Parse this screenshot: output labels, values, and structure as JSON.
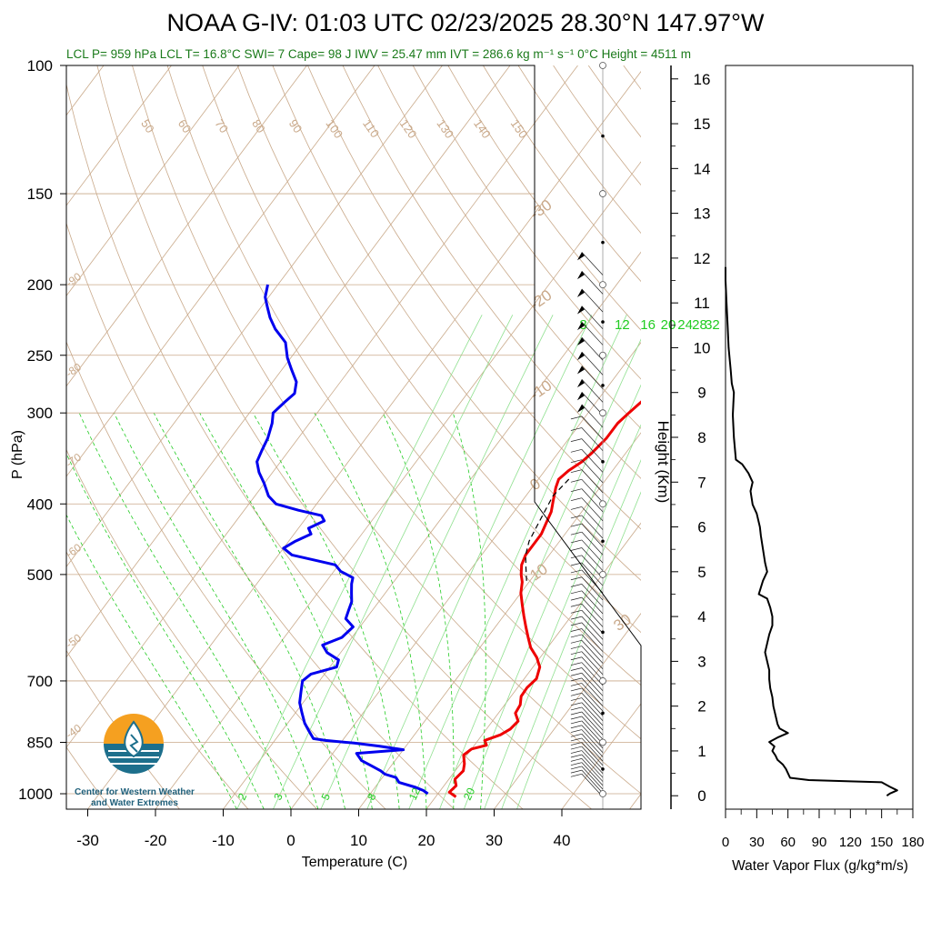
{
  "header": {
    "title": "NOAA G-IV: 01:03 UTC 02/23/2025  28.30°N 147.97°W",
    "subtitle": "LCL P= 959 hPa  LCL T= 16.8°C  SWI= 7  Cape= 98 J  IWV = 25.47 mm  IVT = 286.6 kg m⁻¹ s⁻¹  0°C Height = 4511 m"
  },
  "logo": {
    "line1": "Center for Western Weather",
    "line2": "and Water Extremes"
  },
  "colors": {
    "temperature": "#ee0000",
    "dewpoint": "#0000ee",
    "mixing_ratio": "#22cc22",
    "adiabat": "#c9a98a",
    "isotherm": "#c9a98a",
    "flux": "#000000"
  },
  "chart_data": [
    {
      "type": "line",
      "subtype": "skew-T log-P sounding",
      "xlabel": "Temperature (C)",
      "ylabel": "P (hPa)",
      "x_ticks": [
        "-30",
        "-20",
        "-10",
        "0",
        "10",
        "20",
        "30",
        "40"
      ],
      "y_ticks": [
        "100",
        "150",
        "200",
        "250",
        "300",
        "400",
        "500",
        "700",
        "850",
        "1000"
      ],
      "xlim": [
        -34,
        44
      ],
      "ylim": [
        1050,
        100
      ],
      "y_scale": "log",
      "isotherm_labels": [
        "-90",
        "-80",
        "-70",
        "-60",
        "-50",
        "-40",
        "-30",
        "-20",
        "-10",
        "0",
        "10",
        "20",
        "30"
      ],
      "dry_adiabat_labels": [
        "50",
        "60",
        "70",
        "80",
        "90",
        "100",
        "110",
        "120",
        "130",
        "140",
        "150",
        "160"
      ],
      "mixing_ratio_labels_top": [
        "8",
        "12",
        "16",
        "20",
        "24",
        "28",
        "32"
      ],
      "mixing_ratio_labels_bottom": [
        "2",
        "3",
        "5",
        "8",
        "12",
        "20"
      ],
      "series": [
        {
          "name": "Temperature",
          "points": [
            [
              23.0,
              1010
            ],
            [
              21.5,
              995
            ],
            [
              21.8,
              975
            ],
            [
              20.9,
              955
            ],
            [
              21.2,
              930
            ],
            [
              20.6,
              910
            ],
            [
              19.5,
              885
            ],
            [
              20.0,
              868
            ],
            [
              21.8,
              858
            ],
            [
              21.0,
              845
            ],
            [
              22.7,
              830
            ],
            [
              23.5,
              815
            ],
            [
              23.8,
              795
            ],
            [
              22.5,
              775
            ],
            [
              22.3,
              755
            ],
            [
              21.5,
              735
            ],
            [
              21.4,
              715
            ],
            [
              21.8,
              695
            ],
            [
              21.0,
              670
            ],
            [
              19.5,
              650
            ],
            [
              17.5,
              630
            ],
            [
              16.0,
              610
            ],
            [
              14.5,
              590
            ],
            [
              13.0,
              570
            ],
            [
              11.5,
              550
            ],
            [
              10.0,
              530
            ],
            [
              9.0,
              512
            ],
            [
              8.0,
              500
            ],
            [
              7.0,
              485
            ],
            [
              6.5,
              470
            ],
            [
              6.5,
              455
            ],
            [
              6.5,
              440
            ],
            [
              6.0,
              425
            ],
            [
              5.5,
              410
            ],
            [
              4.5,
              395
            ],
            [
              3.5,
              380
            ],
            [
              3.0,
              370
            ],
            [
              3.5,
              360
            ],
            [
              4.5,
              350
            ],
            [
              5.0,
              340
            ],
            [
              5.5,
              325
            ],
            [
              5.5,
              310
            ],
            [
              6.0,
              300
            ],
            [
              6.5,
              292
            ],
            [
              7.0,
              284
            ],
            [
              6.5,
              276
            ],
            [
              5.0,
              265
            ],
            [
              4.0,
              255
            ],
            [
              3.0,
              245
            ],
            [
              1.0,
              235
            ],
            [
              -1.0,
              225
            ],
            [
              -3.0,
              215
            ],
            [
              -4.0,
              205
            ],
            [
              -5.0,
              200
            ]
          ]
        },
        {
          "name": "Dewpoint",
          "points": [
            [
              18.5,
              1000
            ],
            [
              17.5,
              990
            ],
            [
              16.0,
              980
            ],
            [
              13.0,
              965
            ],
            [
              12.0,
              950
            ],
            [
              10.0,
              940
            ],
            [
              9.0,
              930
            ],
            [
              7.0,
              915
            ],
            [
              5.0,
              900
            ],
            [
              3.5,
              880
            ],
            [
              10.0,
              870
            ],
            [
              6.0,
              860
            ],
            [
              2.0,
              852
            ],
            [
              -2.5,
              845
            ],
            [
              -4.5,
              840
            ],
            [
              -6.0,
              820
            ],
            [
              -7.5,
              800
            ],
            [
              -9.0,
              775
            ],
            [
              -10.5,
              750
            ],
            [
              -11.5,
              725
            ],
            [
              -12.5,
              700
            ],
            [
              -12.0,
              685
            ],
            [
              -9.0,
              670
            ],
            [
              -9.5,
              655
            ],
            [
              -12.0,
              640
            ],
            [
              -13.5,
              625
            ],
            [
              -11.5,
              610
            ],
            [
              -11.0,
              590
            ],
            [
              -13.0,
              575
            ],
            [
              -13.5,
              560
            ],
            [
              -14.0,
              545
            ],
            [
              -15.0,
              530
            ],
            [
              -16.0,
              515
            ],
            [
              -16.5,
              505
            ],
            [
              -19.0,
              495
            ],
            [
              -20.5,
              485
            ],
            [
              -24.0,
              478
            ],
            [
              -28.0,
              470
            ],
            [
              -30.0,
              460
            ],
            [
              -29.0,
              450
            ],
            [
              -27.5,
              440
            ],
            [
              -28.5,
              432
            ],
            [
              -27.0,
              422
            ],
            [
              -28.0,
              415
            ],
            [
              -32.0,
              408
            ],
            [
              -36.0,
              400
            ],
            [
              -38.0,
              390
            ],
            [
              -40.0,
              375
            ],
            [
              -42.0,
              362
            ],
            [
              -43.5,
              350
            ],
            [
              -44.0,
              338
            ],
            [
              -44.5,
              325
            ],
            [
              -45.5,
              310
            ],
            [
              -46.5,
              300
            ],
            [
              -46.0,
              290
            ],
            [
              -45.5,
              282
            ],
            [
              -46.5,
              272
            ],
            [
              -48.5,
              262
            ],
            [
              -50.5,
              252
            ],
            [
              -52.5,
              240
            ],
            [
              -55.5,
              230
            ],
            [
              -57.5,
              222
            ],
            [
              -59.0,
              215
            ],
            [
              -60.5,
              208
            ],
            [
              -61.5,
              200
            ]
          ]
        },
        {
          "name": "Parcel",
          "points": [
            [
              4.5,
              370
            ],
            [
              4.0,
              390
            ],
            [
              4.5,
              410
            ],
            [
              5.0,
              430
            ],
            [
              5.5,
              450
            ],
            [
              6.5,
              470
            ],
            [
              8.0,
              490
            ],
            [
              9.5,
              510
            ]
          ]
        }
      ]
    },
    {
      "type": "line",
      "xlabel": "Water Vapor Flux (g/kg*m/s)",
      "ylabel": "Height (Km)",
      "x_ticks": [
        "0",
        "30",
        "60",
        "90",
        "120",
        "150",
        "180"
      ],
      "y_ticks": [
        "0",
        "1",
        "2",
        "3",
        "4",
        "5",
        "6",
        "7",
        "8",
        "9",
        "10",
        "11",
        "12",
        "13",
        "14",
        "15",
        "16"
      ],
      "xlim": [
        0,
        180
      ],
      "ylim": [
        -0.3,
        16.3
      ],
      "series": [
        {
          "name": "Water Vapor Flux",
          "points": [
            [
              155,
              0.0
            ],
            [
              158,
              0.05
            ],
            [
              165,
              0.12
            ],
            [
              158,
              0.2
            ],
            [
              150,
              0.3
            ],
            [
              120,
              0.32
            ],
            [
              80,
              0.35
            ],
            [
              62,
              0.4
            ],
            [
              60,
              0.5
            ],
            [
              58,
              0.6
            ],
            [
              55,
              0.7
            ],
            [
              50,
              0.8
            ],
            [
              48,
              0.9
            ],
            [
              45,
              1.0
            ],
            [
              47,
              1.1
            ],
            [
              42,
              1.2
            ],
            [
              50,
              1.3
            ],
            [
              60,
              1.4
            ],
            [
              52,
              1.5
            ],
            [
              50,
              1.6
            ],
            [
              48,
              1.8
            ],
            [
              46,
              2.0
            ],
            [
              45,
              2.2
            ],
            [
              43,
              2.4
            ],
            [
              42,
              2.6
            ],
            [
              42,
              2.8
            ],
            [
              40,
              3.0
            ],
            [
              38,
              3.2
            ],
            [
              40,
              3.4
            ],
            [
              42,
              3.6
            ],
            [
              45,
              3.8
            ],
            [
              45,
              4.0
            ],
            [
              43,
              4.2
            ],
            [
              40,
              4.4
            ],
            [
              32,
              4.5
            ],
            [
              36,
              4.8
            ],
            [
              40,
              5.0
            ],
            [
              38,
              5.2
            ],
            [
              36,
              5.5
            ],
            [
              34,
              5.8
            ],
            [
              33,
              6.0
            ],
            [
              30,
              6.3
            ],
            [
              26,
              6.5
            ],
            [
              24,
              6.8
            ],
            [
              26,
              7.0
            ],
            [
              22,
              7.2
            ],
            [
              16,
              7.4
            ],
            [
              10,
              7.5
            ],
            [
              8,
              8.0
            ],
            [
              7,
              8.5
            ],
            [
              8,
              9.0
            ],
            [
              6,
              9.2
            ],
            [
              5,
              9.5
            ],
            [
              3,
              10.0
            ],
            [
              2,
              10.5
            ],
            [
              1,
              11.0
            ],
            [
              0,
              11.5
            ],
            [
              0,
              11.8
            ]
          ]
        }
      ]
    }
  ]
}
